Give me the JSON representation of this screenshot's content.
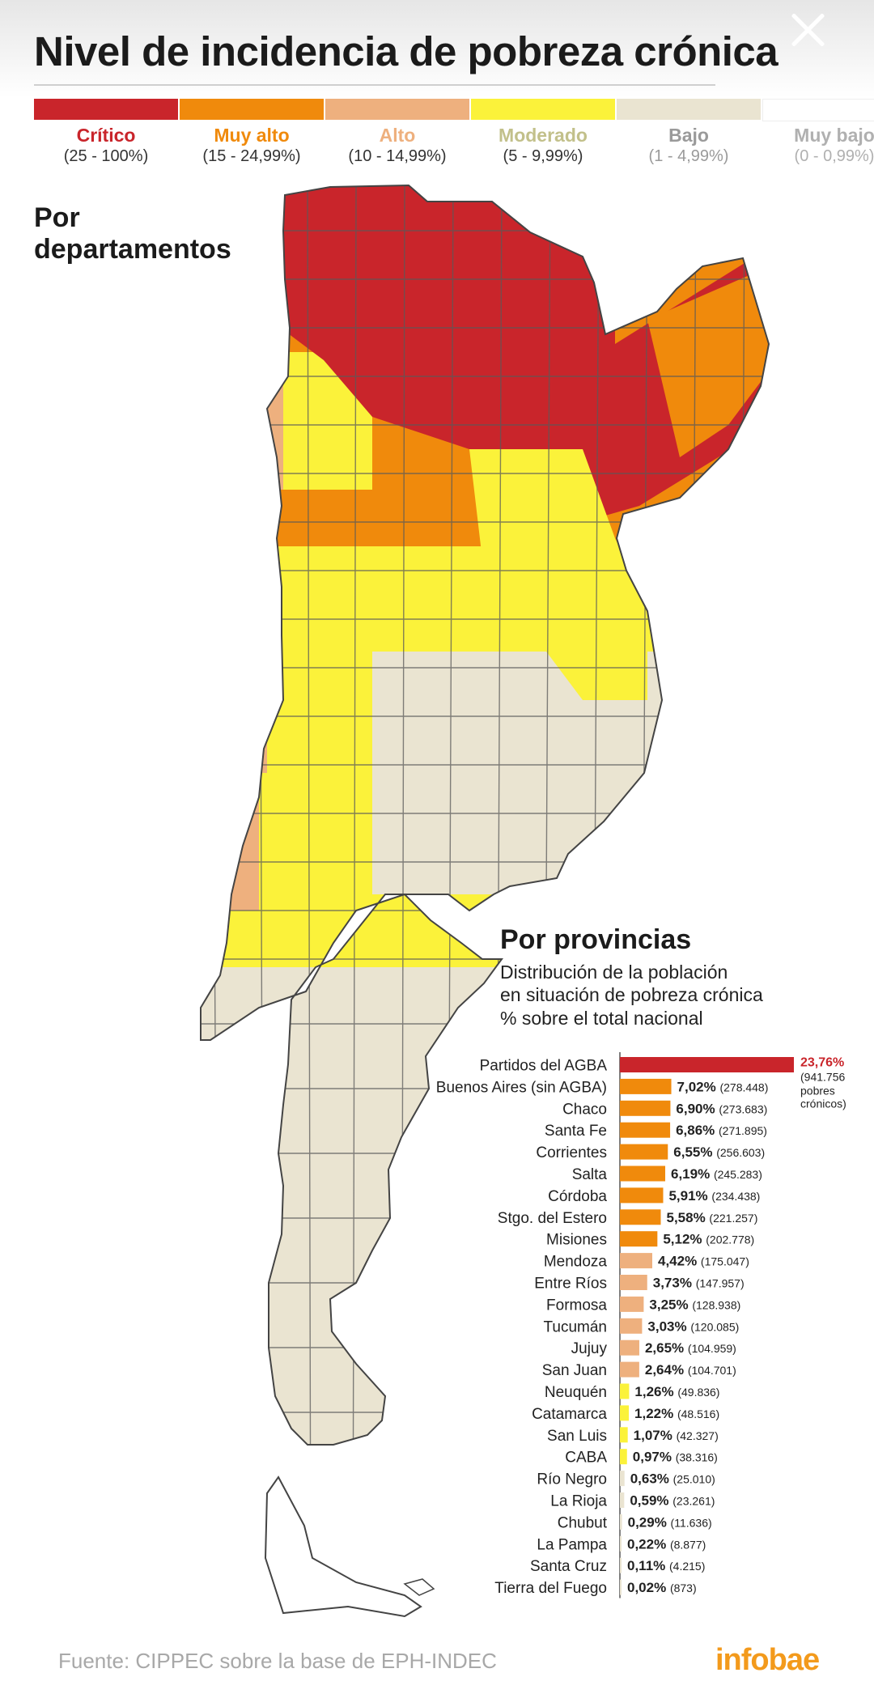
{
  "header": {
    "title": "Nivel de incidencia de pobreza crónica"
  },
  "legend": [
    {
      "name": "Crítico",
      "range": "(25 - 100%)",
      "color": "#c9252b",
      "name_color": "#c9252b",
      "range_color": "#333333"
    },
    {
      "name": "Muy alto",
      "range": "(15 - 24,99%)",
      "color": "#f08a0c",
      "name_color": "#f08a0c",
      "range_color": "#333333"
    },
    {
      "name": "Alto",
      "range": "(10 - 14,99%)",
      "color": "#eeb07e",
      "name_color": "#eeb07e",
      "range_color": "#333333"
    },
    {
      "name": "Moderado",
      "range": "(5 - 9,99%)",
      "color": "#fbf23a",
      "name_color": "#c2c08a",
      "range_color": "#333333"
    },
    {
      "name": "Bajo",
      "range": "(1 - 4,99%)",
      "color": "#eae4d1",
      "name_color": "#9a9a9a",
      "range_color": "#9a9a9a"
    },
    {
      "name": "Muy bajo",
      "range": "(0 - 0,99%)",
      "color": "#ffffff",
      "name_color": "#b0b0b0",
      "range_color": "#b0b0b0"
    }
  ],
  "map_section": {
    "heading_line1": "Por",
    "heading_line2": "departamentos",
    "map_description_icon": "argentina-departments-choropleth"
  },
  "province_section": {
    "heading": "Por provincias",
    "subtitle_line1": "Distribución de la población",
    "subtitle_line2": "en situación de pobreza crónica",
    "subtitle_line3": "% sobre el total nacional"
  },
  "chart_data": {
    "type": "bar",
    "orientation": "horizontal",
    "categories": [
      "Partidos del AGBA",
      "Buenos Aires (sin AGBA)",
      "Chaco",
      "Santa Fe",
      "Corrientes",
      "Salta",
      "Córdoba",
      "Stgo. del Estero",
      "Misiones",
      "Mendoza",
      "Entre Ríos",
      "Formosa",
      "Tucumán",
      "Jujuy",
      "San Juan",
      "Neuquén",
      "Catamarca",
      "San Luis",
      "CABA",
      "Río Negro",
      "La Rioja",
      "Chubut",
      "La Pampa",
      "Santa Cruz",
      "Tierra del Fuego"
    ],
    "values": [
      23.76,
      7.02,
      6.9,
      6.86,
      6.55,
      6.19,
      5.91,
      5.58,
      5.12,
      4.42,
      3.73,
      3.25,
      3.03,
      2.65,
      2.64,
      1.26,
      1.22,
      1.07,
      0.97,
      0.63,
      0.59,
      0.29,
      0.22,
      0.11,
      0.02
    ],
    "value_labels": [
      "23,76%",
      "7,02%",
      "6,90%",
      "6,86%",
      "6,55%",
      "6,19%",
      "5,91%",
      "5,58%",
      "5,12%",
      "4,42%",
      "3,73%",
      "3,25%",
      "3,03%",
      "2,65%",
      "2,64%",
      "1,26%",
      "1,22%",
      "1,07%",
      "0,97%",
      "0,63%",
      "0,59%",
      "0,29%",
      "0,22%",
      "0,11%",
      "0,02%"
    ],
    "counts": [
      "(941.756",
      "(278.448)",
      "(273.683)",
      "(271.895)",
      "(256.603)",
      "(245.283)",
      "(234.438)",
      "(221.257)",
      "(202.778)",
      "(175.047)",
      "(147.957)",
      "(128.938)",
      "(120.085)",
      "(104.959)",
      "(104.701)",
      "(49.836)",
      "(48.516)",
      "(42.327)",
      "(38.316)",
      "(25.010)",
      "(23.261)",
      "(11.636)",
      "(8.877)",
      "(4.215)",
      "(873)"
    ],
    "first_count_extra_lines": [
      "pobres",
      "crónicos)"
    ],
    "levels": [
      "Crítico",
      "Muy alto",
      "Muy alto",
      "Muy alto",
      "Muy alto",
      "Muy alto",
      "Muy alto",
      "Muy alto",
      "Muy alto",
      "Alto",
      "Alto",
      "Alto",
      "Alto",
      "Alto",
      "Alto",
      "Moderado",
      "Moderado",
      "Moderado",
      "Moderado",
      "Bajo",
      "Bajo",
      "Bajo",
      "Bajo",
      "Bajo",
      "Bajo"
    ],
    "level_colors": {
      "Crítico": "#c9252b",
      "Muy alto": "#f08a0c",
      "Alto": "#eeb07e",
      "Moderado": "#fbf23a",
      "Bajo": "#eae4d1"
    },
    "highlight_color": "#c9252b"
  },
  "footer": {
    "source": "Fuente: CIPPEC sobre la base de EPH-INDEC",
    "brand": "infobae"
  }
}
